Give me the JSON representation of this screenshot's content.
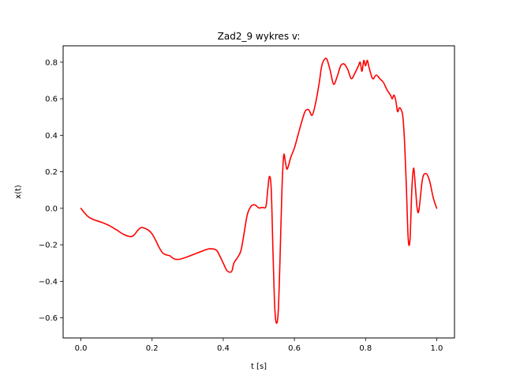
{
  "chart_data": {
    "type": "line",
    "title": "Zad2_9 wykres v:",
    "xlabel": "t [s]",
    "ylabel": "x(t)",
    "xlim": [
      -0.05,
      1.05
    ],
    "ylim": [
      -0.71,
      0.89
    ],
    "x_ticks": [
      0.0,
      0.2,
      0.4,
      0.6,
      0.8,
      1.0
    ],
    "x_tick_labels": [
      "0.0",
      "0.2",
      "0.4",
      "0.6",
      "0.8",
      "1.0"
    ],
    "y_ticks": [
      -0.6,
      -0.4,
      -0.2,
      0.0,
      0.2,
      0.4,
      0.6,
      0.8
    ],
    "y_tick_labels": [
      "−0.6",
      "−0.4",
      "−0.2",
      "0.0",
      "0.2",
      "0.4",
      "0.6",
      "0.8"
    ],
    "grid": false,
    "series": [
      {
        "color": "#ff0000",
        "x": [
          0.0,
          0.01,
          0.02,
          0.03,
          0.04,
          0.06,
          0.08,
          0.1,
          0.12,
          0.14,
          0.15,
          0.16,
          0.17,
          0.18,
          0.19,
          0.2,
          0.21,
          0.22,
          0.23,
          0.24,
          0.25,
          0.26,
          0.27,
          0.28,
          0.29,
          0.3,
          0.32,
          0.34,
          0.36,
          0.38,
          0.39,
          0.4,
          0.41,
          0.42,
          0.425,
          0.43,
          0.44,
          0.45,
          0.46,
          0.465,
          0.47,
          0.48,
          0.49,
          0.5,
          0.51,
          0.52,
          0.525,
          0.53,
          0.535,
          0.54,
          0.545,
          0.55,
          0.555,
          0.56,
          0.565,
          0.57,
          0.575,
          0.58,
          0.59,
          0.6,
          0.61,
          0.62,
          0.63,
          0.64,
          0.65,
          0.66,
          0.67,
          0.675,
          0.68,
          0.69,
          0.7,
          0.71,
          0.72,
          0.73,
          0.74,
          0.75,
          0.76,
          0.77,
          0.78,
          0.785,
          0.79,
          0.795,
          0.8,
          0.805,
          0.81,
          0.82,
          0.83,
          0.84,
          0.85,
          0.86,
          0.87,
          0.875,
          0.88,
          0.885,
          0.89,
          0.895,
          0.9,
          0.905,
          0.91,
          0.915,
          0.92,
          0.925,
          0.93,
          0.935,
          0.94,
          0.945,
          0.95,
          0.96,
          0.97,
          0.98,
          0.99,
          1.0
        ],
        "y": [
          0.0,
          -0.025,
          -0.045,
          -0.057,
          -0.065,
          -0.078,
          -0.095,
          -0.118,
          -0.143,
          -0.155,
          -0.145,
          -0.12,
          -0.105,
          -0.11,
          -0.12,
          -0.14,
          -0.175,
          -0.215,
          -0.245,
          -0.255,
          -0.26,
          -0.275,
          -0.28,
          -0.278,
          -0.272,
          -0.265,
          -0.25,
          -0.235,
          -0.222,
          -0.228,
          -0.26,
          -0.3,
          -0.34,
          -0.35,
          -0.34,
          -0.3,
          -0.27,
          -0.23,
          -0.12,
          -0.06,
          -0.02,
          0.015,
          0.018,
          0.002,
          0.005,
          0.01,
          0.1,
          0.175,
          0.1,
          -0.25,
          -0.55,
          -0.63,
          -0.55,
          -0.25,
          0.1,
          0.29,
          0.25,
          0.215,
          0.28,
          0.33,
          0.4,
          0.47,
          0.53,
          0.54,
          0.51,
          0.58,
          0.69,
          0.76,
          0.8,
          0.82,
          0.76,
          0.68,
          0.72,
          0.78,
          0.79,
          0.76,
          0.71,
          0.74,
          0.78,
          0.8,
          0.75,
          0.81,
          0.78,
          0.81,
          0.77,
          0.71,
          0.73,
          0.71,
          0.69,
          0.65,
          0.62,
          0.6,
          0.62,
          0.59,
          0.53,
          0.55,
          0.54,
          0.5,
          0.35,
          0.1,
          -0.17,
          -0.17,
          0.1,
          0.22,
          0.12,
          0.0,
          -0.01,
          0.16,
          0.19,
          0.15,
          0.06,
          0.0
        ]
      }
    ]
  }
}
